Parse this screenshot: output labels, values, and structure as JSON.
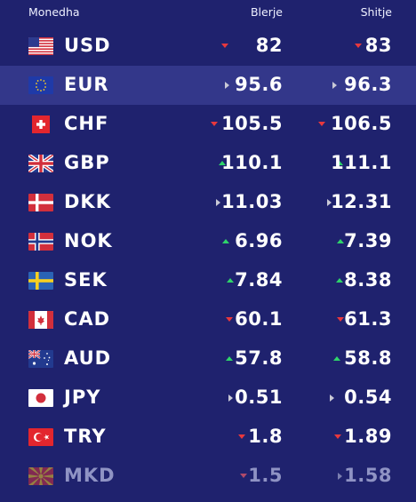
{
  "header": {
    "currency": "Monedha",
    "buy": "Blerje",
    "sell": "Shitje"
  },
  "colors": {
    "background": "#1f226e",
    "highlight_row": "#33378a",
    "down": "#e8383d",
    "up": "#2fd46a",
    "flat": "#c9c9d6"
  },
  "rows": [
    {
      "code": "USD",
      "flag_icon": "us-flag-icon",
      "buy": "82",
      "buy_trend": "down",
      "sell": "83",
      "sell_trend": "down"
    },
    {
      "code": "EUR",
      "flag_icon": "eu-flag-icon",
      "buy": "95.6",
      "buy_trend": "flat",
      "sell": "96.3",
      "sell_trend": "flat"
    },
    {
      "code": "CHF",
      "flag_icon": "ch-flag-icon",
      "buy": "105.5",
      "buy_trend": "down",
      "sell": "106.5",
      "sell_trend": "down"
    },
    {
      "code": "GBP",
      "flag_icon": "gb-flag-icon",
      "buy": "110.1",
      "buy_trend": "up",
      "sell": "111.1",
      "sell_trend": "up"
    },
    {
      "code": "DKK",
      "flag_icon": "dk-flag-icon",
      "buy": "11.03",
      "buy_trend": "flat",
      "sell": "12.31",
      "sell_trend": "flat"
    },
    {
      "code": "NOK",
      "flag_icon": "no-flag-icon",
      "buy": "6.96",
      "buy_trend": "up",
      "sell": "7.39",
      "sell_trend": "up"
    },
    {
      "code": "SEK",
      "flag_icon": "se-flag-icon",
      "buy": "7.84",
      "buy_trend": "up",
      "sell": "8.38",
      "sell_trend": "up"
    },
    {
      "code": "CAD",
      "flag_icon": "ca-flag-icon",
      "buy": "60.1",
      "buy_trend": "down",
      "sell": "61.3",
      "sell_trend": "down"
    },
    {
      "code": "AUD",
      "flag_icon": "au-flag-icon",
      "buy": "57.8",
      "buy_trend": "up",
      "sell": "58.8",
      "sell_trend": "up"
    },
    {
      "code": "JPY",
      "flag_icon": "jp-flag-icon",
      "buy": "0.51",
      "buy_trend": "flat",
      "sell": "0.54",
      "sell_trend": "flat"
    },
    {
      "code": "TRY",
      "flag_icon": "tr-flag-icon",
      "buy": "1.8",
      "buy_trend": "down",
      "sell": "1.89",
      "sell_trend": "down"
    },
    {
      "code": "MKD",
      "flag_icon": "mk-flag-icon",
      "buy": "1.5",
      "buy_trend": "down",
      "sell": "1.58",
      "sell_trend": "flat"
    }
  ]
}
